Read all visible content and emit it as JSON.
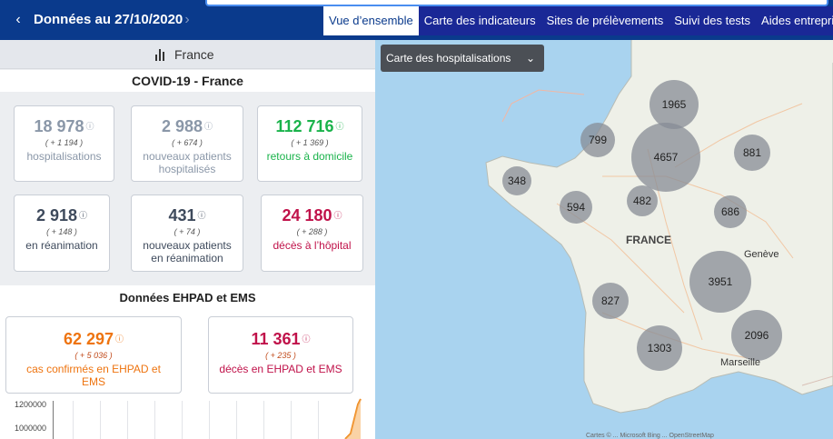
{
  "header": {
    "prev_arrow": "‹",
    "next_arrow": "›",
    "date_title": "Données au 27/10/2020"
  },
  "tabs": [
    {
      "label": "Vue d’ensemble",
      "active": true
    },
    {
      "label": "Carte des indicateurs",
      "active": false
    },
    {
      "label": "Sites de prélèvements",
      "active": false
    },
    {
      "label": "Suivi des tests",
      "active": false
    },
    {
      "label": "Aides entreprises",
      "active": false
    }
  ],
  "region": {
    "icon": "bar-chart-icon",
    "label": "France"
  },
  "covid": {
    "title": "COVID-19 - France",
    "cards": [
      {
        "value": "18 978",
        "delta": "( + 1 194 )",
        "label": "hospitalisations",
        "tone": "grey"
      },
      {
        "value": "2 988",
        "delta": "( + 674 )",
        "label": "nouveaux patients hospitalisés",
        "tone": "grey"
      },
      {
        "value": "112 716",
        "delta": "( + 1 369 )",
        "label": "retours à domicile",
        "tone": "green"
      },
      {
        "value": "2 918",
        "delta": "( + 148 )",
        "label": "en réanimation",
        "tone": "dark"
      },
      {
        "value": "431",
        "delta": "( + 74 )",
        "label": "nouveaux patients en réanimation",
        "tone": "dark"
      },
      {
        "value": "24 180",
        "delta": "( + 288 )",
        "label": "décès à l’hôpital",
        "tone": "red"
      }
    ]
  },
  "ehpad": {
    "title": "Données EHPAD et EMS",
    "cards": [
      {
        "value": "62 297",
        "delta": "( + 5 036 )",
        "label": "cas confirmés en EHPAD et EMS",
        "tone": "orange"
      },
      {
        "value": "11 361",
        "delta": "( + 235 )",
        "label": "décès en EHPAD et EMS",
        "tone": "red2"
      }
    ]
  },
  "chart": {
    "ticks": [
      "1200000",
      "1000000"
    ]
  },
  "map": {
    "selector_label": "Carte des hospitalisations",
    "selector_icon": "chevron-down-icon",
    "bubbles": [
      "1965",
      "799",
      "4657",
      "881",
      "348",
      "594",
      "482",
      "686",
      "3951",
      "827",
      "1303",
      "2096"
    ],
    "labels": {
      "country": "FRANCE",
      "city1": "Genève",
      "city2": "Marseille"
    },
    "attribution": "Cartes © ... Microsoft Bing ... OpenStreetMap"
  }
}
